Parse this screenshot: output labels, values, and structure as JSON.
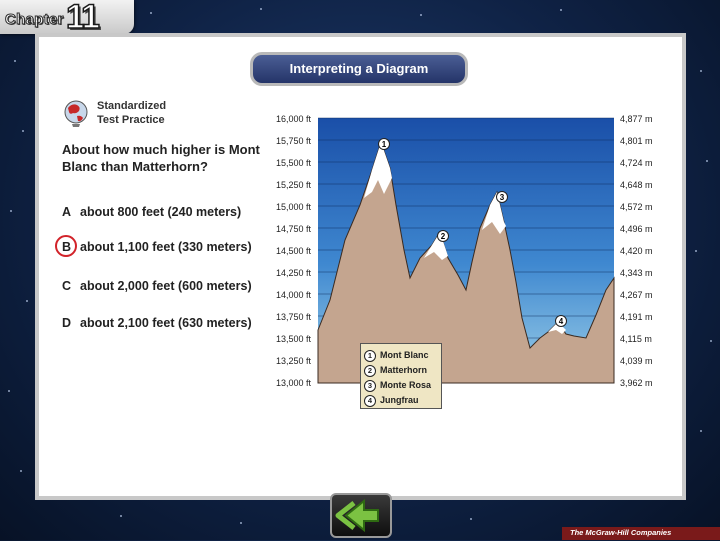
{
  "header": {
    "chapter_word": "Chapter",
    "chapter_number": "11"
  },
  "title": "Interpreting a Diagram",
  "practice": {
    "line1": "Standardized",
    "line2": "Test Practice",
    "icon": "globe-icon"
  },
  "question": "About how much higher is Mont Blanc than Matterhorn?",
  "answers": [
    {
      "letter": "A",
      "text": "about 800 feet (240 meters)"
    },
    {
      "letter": "B",
      "text": "about 1,100 feet (330 meters)",
      "selected": true
    },
    {
      "letter": "C",
      "text": "about 2,000 feet (600 meters)"
    },
    {
      "letter": "D",
      "text": "about 2,100 feet (630 meters)"
    }
  ],
  "diagram": {
    "left_labels": [
      "16,000 ft",
      "15,750 ft",
      "15,500 ft",
      "15,250 ft",
      "15,000 ft",
      "14,750 ft",
      "14,500 ft",
      "14,250 ft",
      "14,000 ft",
      "13,750 ft",
      "13,500 ft",
      "13,250 ft",
      "13,000 ft"
    ],
    "right_labels": [
      "4,877 m",
      "4,801 m",
      "4,724 m",
      "4,648 m",
      "4,572 m",
      "4,496 m",
      "4,420 m",
      "4,343 m",
      "4,267 m",
      "4,191 m",
      "4,115 m",
      "4,039 m",
      "3,962 m"
    ],
    "legend": [
      {
        "num": "1",
        "name": "Mont Blanc"
      },
      {
        "num": "2",
        "name": "Matterhorn"
      },
      {
        "num": "3",
        "name": "Monte Rosa"
      },
      {
        "num": "4",
        "name": "Jungfrau"
      }
    ],
    "colors": {
      "sky_top": "#1a4fa8",
      "sky_bottom": "#9ccfe8",
      "mountain": "#c4a58f",
      "snow": "#ffffff"
    }
  },
  "navigation": {
    "back_icon": "back-arrow-icon"
  },
  "footer": {
    "publisher": "The McGraw-Hill Companies"
  },
  "colors": {
    "accent_red": "#d2232a",
    "title_bar": "#2e3f76"
  }
}
